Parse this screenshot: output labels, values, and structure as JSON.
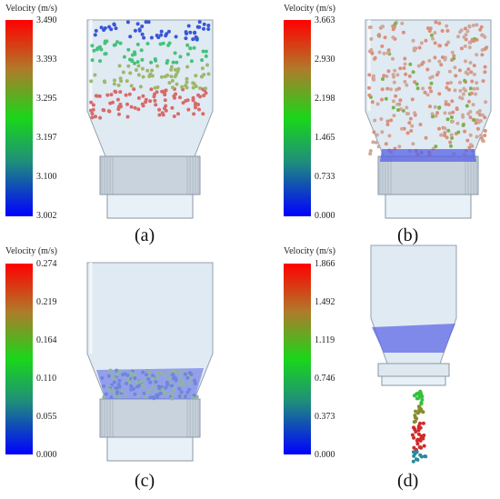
{
  "panels": [
    {
      "caption": "(a)",
      "legend_title": "Velocity (m/s)",
      "ticks": [
        "3.490",
        "3.393",
        "3.295",
        "3.197",
        "3.100",
        "3.002"
      ]
    },
    {
      "caption": "(b)",
      "legend_title": "Velocity (m/s)",
      "ticks": [
        "3.663",
        "2.930",
        "2.198",
        "1.465",
        "0.733",
        "0.000"
      ]
    },
    {
      "caption": "(c)",
      "legend_title": "Velocity (m/s)",
      "ticks": [
        "0.274",
        "0.219",
        "0.164",
        "0.110",
        "0.055",
        "0.000"
      ]
    },
    {
      "caption": "(d)",
      "legend_title": "Velocity (m/s)",
      "ticks": [
        "1.866",
        "1.492",
        "1.119",
        "0.746",
        "0.373",
        "0.000"
      ]
    }
  ],
  "colors": {
    "vessel": "#dde8f2",
    "vessel_edge": "#8a97a6",
    "packed_bed": "#5560e6"
  }
}
